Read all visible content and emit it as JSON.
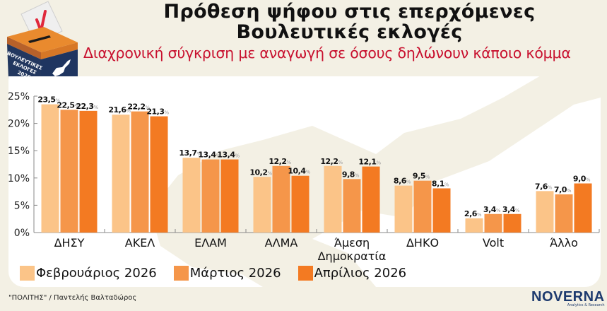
{
  "header": {
    "title_line1": "Πρόθεση ψήφου στις επερχόμενες",
    "title_line2": "Βουλευτικές εκλογές",
    "subtitle": "Διαχρονική σύγκριση με αναγωγή σε όσους δηλώνουν κάποιο κόμμα"
  },
  "ballot_box": {
    "label_line1": "ΒΟΥΛΕΥΤΙΚΕΣ",
    "label_line2": "ΕΚΛΟΓΕΣ",
    "label_line3": "2026"
  },
  "colors": {
    "feb": "#fbc488",
    "mar": "#f5964a",
    "apr": "#f37a22",
    "subtitle": "#c8102e",
    "box_navy": "#1f3560",
    "box_orange": "#e98a2e"
  },
  "chart_data": {
    "type": "bar",
    "title": "Πρόθεση ψήφου στις επερχόμενες Βουλευτικές εκλογές",
    "subtitle": "Διαχρονική σύγκριση με αναγωγή σε όσους δηλώνουν κάποιο κόμμα",
    "xlabel": "",
    "ylabel": "",
    "ylim": [
      0,
      25
    ],
    "yticks": [
      "0%",
      "5%",
      "10%",
      "15%",
      "20%",
      "25%"
    ],
    "ytick_values": [
      0,
      5,
      10,
      15,
      20,
      25
    ],
    "grid": false,
    "legend_position": "bottom-left",
    "categories": [
      "ΔΗΣΥ",
      "ΑΚΕΛ",
      "ΕΛΑΜ",
      "ΑΛΜΑ",
      "Άμεση Δημοκρατία",
      "ΔΗΚΟ",
      "Volt",
      "Άλλο"
    ],
    "category_lines": [
      [
        "ΔΗΣΥ"
      ],
      [
        "ΑΚΕΛ"
      ],
      [
        "ΕΛΑΜ"
      ],
      [
        "ΑΛΜΑ"
      ],
      [
        "Άμεση",
        "Δημοκρατία"
      ],
      [
        "ΔΗΚΟ"
      ],
      [
        "Volt"
      ],
      [
        "Άλλο"
      ]
    ],
    "series": [
      {
        "name": "Φεβρουάριος 2026",
        "values": [
          23.5,
          21.6,
          13.7,
          10.2,
          12.2,
          8.6,
          2.6,
          7.6
        ],
        "labels": [
          "23,5",
          "21,6",
          "13,7",
          "10,2",
          "12,2",
          "8,6",
          "2,6",
          "7,6"
        ]
      },
      {
        "name": "Μάρτιος 2026",
        "values": [
          22.5,
          22.2,
          13.4,
          12.2,
          9.8,
          9.5,
          3.4,
          7.0
        ],
        "labels": [
          "22,5",
          "22,2",
          "13,4",
          "12,2",
          "9,8",
          "9,5",
          "3,4",
          "7,0"
        ]
      },
      {
        "name": "Απρίλιος 2026",
        "values": [
          22.3,
          21.3,
          13.4,
          10.4,
          12.1,
          8.1,
          3.4,
          9.0
        ],
        "labels": [
          "22,3",
          "21,3",
          "13,4",
          "10,4",
          "12,1",
          "8,1",
          "3,4",
          "9,0"
        ]
      }
    ],
    "value_suffix": "%"
  },
  "legend": [
    {
      "label": "Φεβρουάριος 2026"
    },
    {
      "label": "Μάρτιος 2026"
    },
    {
      "label": "Απρίλιος 2026"
    }
  ],
  "footer": {
    "credit": "\"ΠΟΛΙΤΗΣ\" / Παντελής Βαλταδώρος",
    "logo_main": "NOVERNA",
    "logo_sub": "Analytics & Research"
  }
}
